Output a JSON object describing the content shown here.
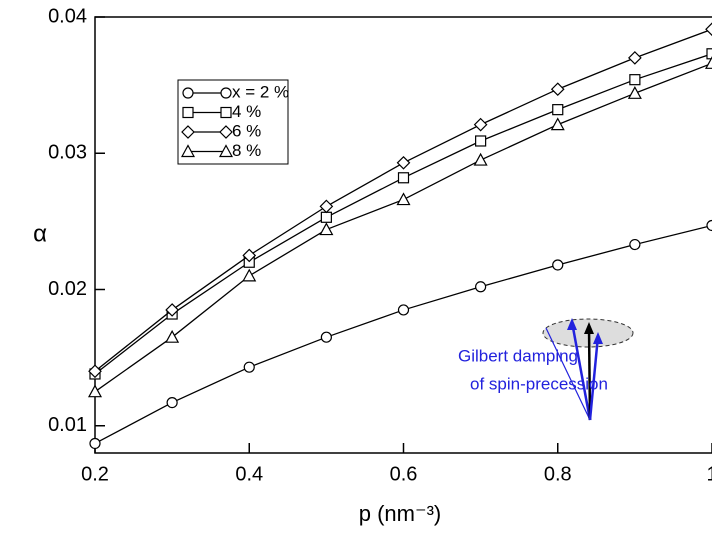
{
  "chart_data": {
    "type": "line",
    "x": [
      0.2,
      0.3,
      0.4,
      0.5,
      0.6,
      0.7,
      0.8,
      0.9,
      1.0
    ],
    "series": [
      {
        "name": "x = 2 %",
        "color": "#000000",
        "marker": "circle",
        "values": [
          0.0087,
          0.0117,
          0.0143,
          0.0165,
          0.0185,
          0.0202,
          0.0218,
          0.0233,
          0.0247
        ]
      },
      {
        "name": "4 %",
        "color": "#000000",
        "marker": "square",
        "values": [
          0.0138,
          0.0182,
          0.022,
          0.0253,
          0.0282,
          0.0309,
          0.0332,
          0.0354,
          0.0373
        ]
      },
      {
        "name": "6 %",
        "color": "#000000",
        "marker": "diamond",
        "values": [
          0.014,
          0.0185,
          0.0225,
          0.0261,
          0.0293,
          0.0321,
          0.0347,
          0.037,
          0.0391
        ]
      },
      {
        "name": "8 %",
        "color": "#000000",
        "marker": "triangle",
        "values": [
          0.0125,
          0.0165,
          0.021,
          0.0244,
          0.0266,
          0.0295,
          0.0321,
          0.0344,
          0.0366
        ]
      }
    ],
    "xlabel": "p (nm⁻³)",
    "ylabel": "α",
    "xlim": [
      0.2,
      1.0
    ],
    "xticks": [
      0.2,
      0.4,
      0.6,
      0.8,
      1
    ],
    "ylim": [
      0.008,
      0.04
    ],
    "yticks": [
      0.01,
      0.02,
      0.03,
      0.04
    ],
    "grid": false,
    "annotations": [
      "Gilbert damping",
      "of  spin-precession"
    ]
  }
}
